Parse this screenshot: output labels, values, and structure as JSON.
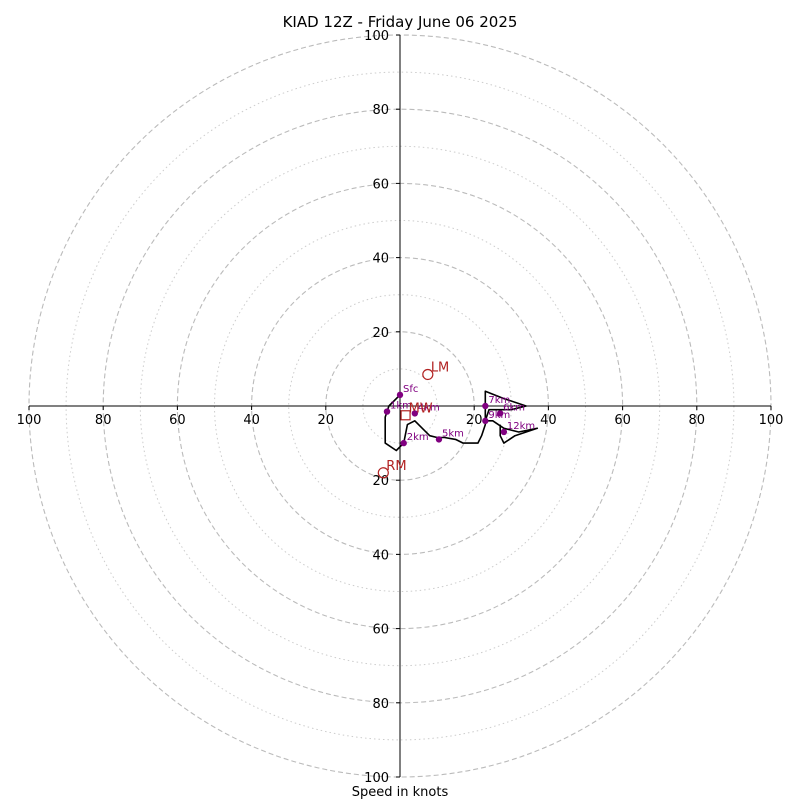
{
  "chart_data": {
    "type": "hodograph",
    "title": "KIAD 12Z - Friday June 06 2025",
    "xlabel": "Speed in knots",
    "range": [
      -100,
      100
    ],
    "ring_major": [
      20,
      40,
      60,
      80,
      100
    ],
    "ring_minor": [
      10,
      30,
      50,
      70,
      90
    ],
    "tick_values": [
      20,
      40,
      60,
      80,
      100
    ],
    "colors": {
      "trace": "#000000",
      "height_marker": "#800080",
      "motion": "#b22222",
      "ring": "#bbbbbb"
    },
    "hodograph_trace": [
      [
        0,
        3
      ],
      [
        -3,
        0
      ],
      [
        -4,
        -3
      ],
      [
        -4,
        -10
      ],
      [
        -1,
        -12
      ],
      [
        1,
        -10
      ],
      [
        2,
        -5
      ],
      [
        4,
        -4
      ],
      [
        6,
        -6
      ],
      [
        8,
        -8
      ],
      [
        10,
        -8.5
      ],
      [
        12,
        -8.5
      ],
      [
        15,
        -9
      ],
      [
        17,
        -10
      ],
      [
        19,
        -10
      ],
      [
        21,
        -10
      ],
      [
        22,
        -8
      ],
      [
        23,
        -5
      ],
      [
        23,
        -2
      ],
      [
        23,
        1
      ],
      [
        23,
        4
      ],
      [
        28,
        2
      ],
      [
        34,
        0
      ],
      [
        30,
        -1
      ],
      [
        27,
        -1
      ],
      [
        24,
        -1
      ],
      [
        23,
        -4
      ],
      [
        25,
        -4
      ],
      [
        28,
        -6
      ],
      [
        32,
        -7
      ],
      [
        37,
        -6
      ],
      [
        31,
        -8
      ],
      [
        28,
        -10
      ],
      [
        27,
        -8
      ],
      [
        27,
        -5
      ]
    ],
    "height_markers": [
      {
        "label": "Sfc",
        "u": 0,
        "v": 3
      },
      {
        "label": "1km",
        "u": -3.5,
        "v": -1.5
      },
      {
        "label": "2km",
        "u": 1,
        "v": -10
      },
      {
        "label": "4km",
        "u": 4,
        "v": -2
      },
      {
        "label": "5km",
        "u": 10.5,
        "v": -9
      },
      {
        "label": "7km",
        "u": 23,
        "v": 0
      },
      {
        "label": "6km",
        "u": 27,
        "v": -2
      },
      {
        "label": "9km",
        "u": 23,
        "v": -4
      },
      {
        "label": "12km",
        "u": 28,
        "v": -7
      }
    ],
    "storm_motion": [
      {
        "label": "LM",
        "u": 7.5,
        "v": 8.5,
        "marker": "circle"
      },
      {
        "label": "RM",
        "u": -4.5,
        "v": -18,
        "marker": "circle"
      },
      {
        "label": "MW",
        "u": 1.5,
        "v": -2.5,
        "marker": "square"
      }
    ]
  }
}
